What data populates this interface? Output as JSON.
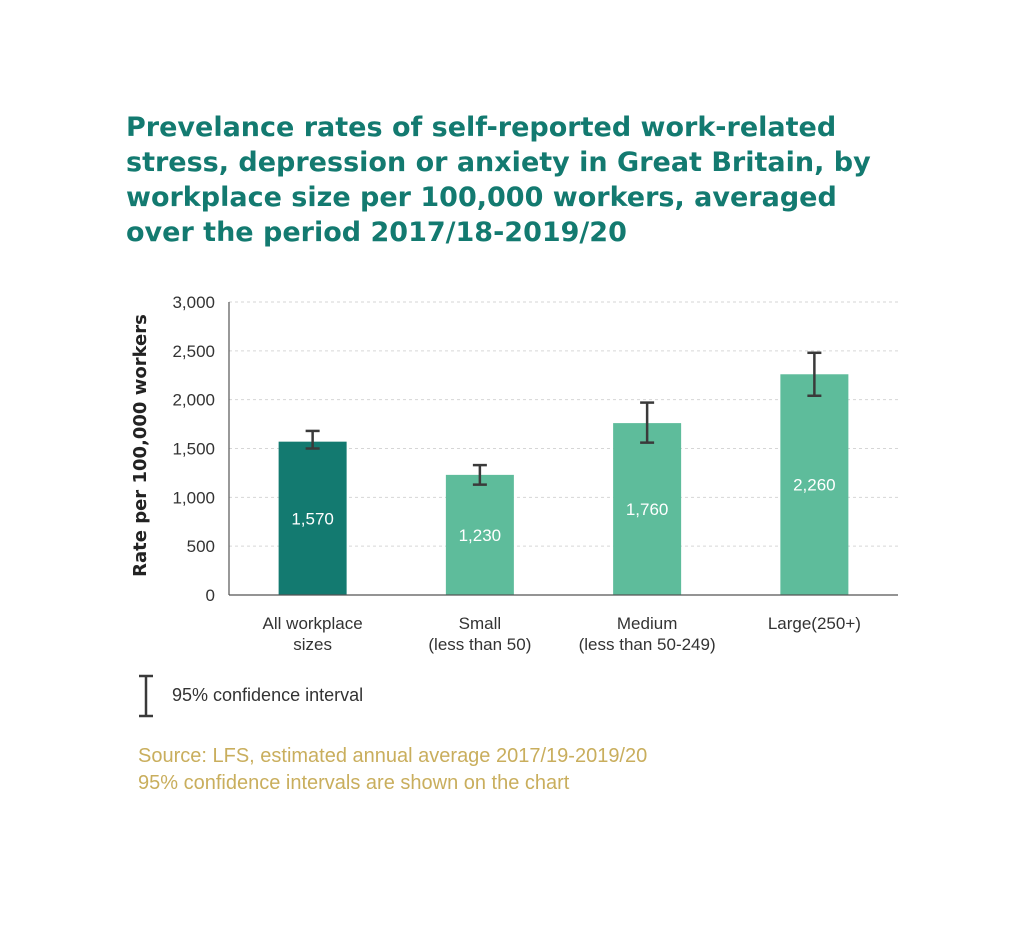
{
  "title": "Prevelance rates of self-reported work-related stress, depression or anxiety in Great Britain, by workplace size per 100,000 workers, averaged over the period 2017/18-2019/20",
  "legend": {
    "label": "95% confidence interval",
    "icon": "error-bar-icon"
  },
  "source": {
    "line1": "Source: LFS, estimated annual average 2017/19-2019/20",
    "line2": "95% confidence intervals are shown on the chart"
  },
  "colors": {
    "title": "#137a70",
    "highlight_bar": "#137a70",
    "bar": "#5ebc9b",
    "source": "#c9ae5d",
    "error_bar": "#3a3a3a"
  },
  "chart_data": {
    "type": "bar",
    "title": "Prevelance rates of self-reported work-related stress, depression or anxiety in Great Britain, by workplace size per 100,000 workers, averaged over the period 2017/18-2019/20",
    "ylabel": "Rate per 100,000 workers",
    "xlabel": "",
    "ylim": [
      0,
      3000
    ],
    "yticks": [
      0,
      500,
      1000,
      1500,
      2000,
      2500,
      3000
    ],
    "ytick_labels": [
      "0",
      "500",
      "1,000",
      "1,500",
      "2,000",
      "2,500",
      "3,000"
    ],
    "grid": true,
    "categories": [
      [
        "All workplace",
        "sizes"
      ],
      [
        "Small",
        "(less than 50)"
      ],
      [
        "Medium",
        "(less than 50-249)"
      ],
      [
        "Large(250+)"
      ]
    ],
    "values": [
      1570,
      1230,
      1760,
      2260
    ],
    "value_labels": [
      "1,570",
      "1,230",
      "1,760",
      "2,260"
    ],
    "ci_lower": [
      1500,
      1130,
      1560,
      2040
    ],
    "ci_upper": [
      1680,
      1330,
      1970,
      2480
    ],
    "highlight_index": 0
  }
}
